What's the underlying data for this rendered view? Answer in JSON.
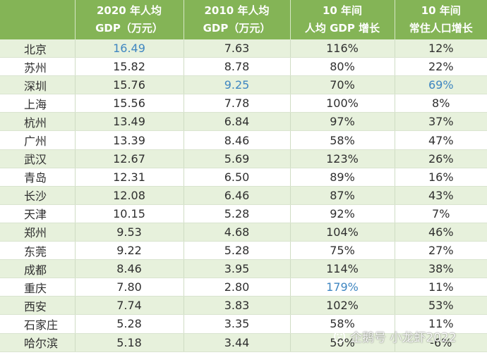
{
  "table": {
    "headers": [
      {
        "line1": "",
        "line2": ""
      },
      {
        "line1": "2020 年人均",
        "line2": "GDP（万元）"
      },
      {
        "line1": "2010 年人均",
        "line2": "GDP（万元）"
      },
      {
        "line1": "10 年间",
        "line2": "人均 GDP 增长"
      },
      {
        "line1": "10 年间",
        "line2": "常住人口增长"
      }
    ],
    "rows": [
      {
        "city": "北京",
        "gdp2020": "16.49",
        "gdp2010": "7.63",
        "gdp_growth": "116%",
        "pop_growth": "12%"
      },
      {
        "city": "苏州",
        "gdp2020": "15.82",
        "gdp2010": "8.78",
        "gdp_growth": "80%",
        "pop_growth": "22%"
      },
      {
        "city": "深圳",
        "gdp2020": "15.76",
        "gdp2010": "9.25",
        "gdp_growth": "70%",
        "pop_growth": "69%"
      },
      {
        "city": "上海",
        "gdp2020": "15.56",
        "gdp2010": "7.78",
        "gdp_growth": "100%",
        "pop_growth": "8%"
      },
      {
        "city": "杭州",
        "gdp2020": "13.49",
        "gdp2010": "6.84",
        "gdp_growth": "97%",
        "pop_growth": "37%"
      },
      {
        "city": "广州",
        "gdp2020": "13.39",
        "gdp2010": "8.46",
        "gdp_growth": "58%",
        "pop_growth": "47%"
      },
      {
        "city": "武汉",
        "gdp2020": "12.67",
        "gdp2010": "5.69",
        "gdp_growth": "123%",
        "pop_growth": "26%"
      },
      {
        "city": "青岛",
        "gdp2020": "12.31",
        "gdp2010": "6.50",
        "gdp_growth": "89%",
        "pop_growth": "16%"
      },
      {
        "city": "长沙",
        "gdp2020": "12.08",
        "gdp2010": "6.46",
        "gdp_growth": "87%",
        "pop_growth": "43%"
      },
      {
        "city": "天津",
        "gdp2020": "10.15",
        "gdp2010": "5.28",
        "gdp_growth": "92%",
        "pop_growth": "7%"
      },
      {
        "city": "郑州",
        "gdp2020": "9.53",
        "gdp2010": "4.68",
        "gdp_growth": "104%",
        "pop_growth": "46%"
      },
      {
        "city": "东莞",
        "gdp2020": "9.22",
        "gdp2010": "5.28",
        "gdp_growth": "75%",
        "pop_growth": "27%"
      },
      {
        "city": "成都",
        "gdp2020": "8.46",
        "gdp2010": "3.95",
        "gdp_growth": "114%",
        "pop_growth": "38%"
      },
      {
        "city": "重庆",
        "gdp2020": "7.80",
        "gdp2010": "2.80",
        "gdp_growth": "179%",
        "pop_growth": "11%"
      },
      {
        "city": "西安",
        "gdp2020": "7.74",
        "gdp2010": "3.83",
        "gdp_growth": "102%",
        "pop_growth": "53%"
      },
      {
        "city": "石家庄",
        "gdp2020": "5.28",
        "gdp2010": "3.35",
        "gdp_growth": "58%",
        "pop_growth": "11%"
      },
      {
        "city": "哈尔滨",
        "gdp2020": "5.18",
        "gdp2010": "3.44",
        "gdp_growth": "50%",
        "pop_growth": "-6%"
      }
    ]
  },
  "highlights": {
    "color": "#3f86c1",
    "cells": [
      "0.gdp2020",
      "2.gdp2010",
      "2.pop_growth",
      "13.gdp_growth"
    ]
  },
  "colors": {
    "header_bg": "#84b456",
    "row_odd_bg": "#e7f1dc",
    "row_even_bg": "#ffffff"
  },
  "watermark": {
    "text": "企鹅号 小龙虾2022",
    "icon": "penguin-logo-icon"
  }
}
